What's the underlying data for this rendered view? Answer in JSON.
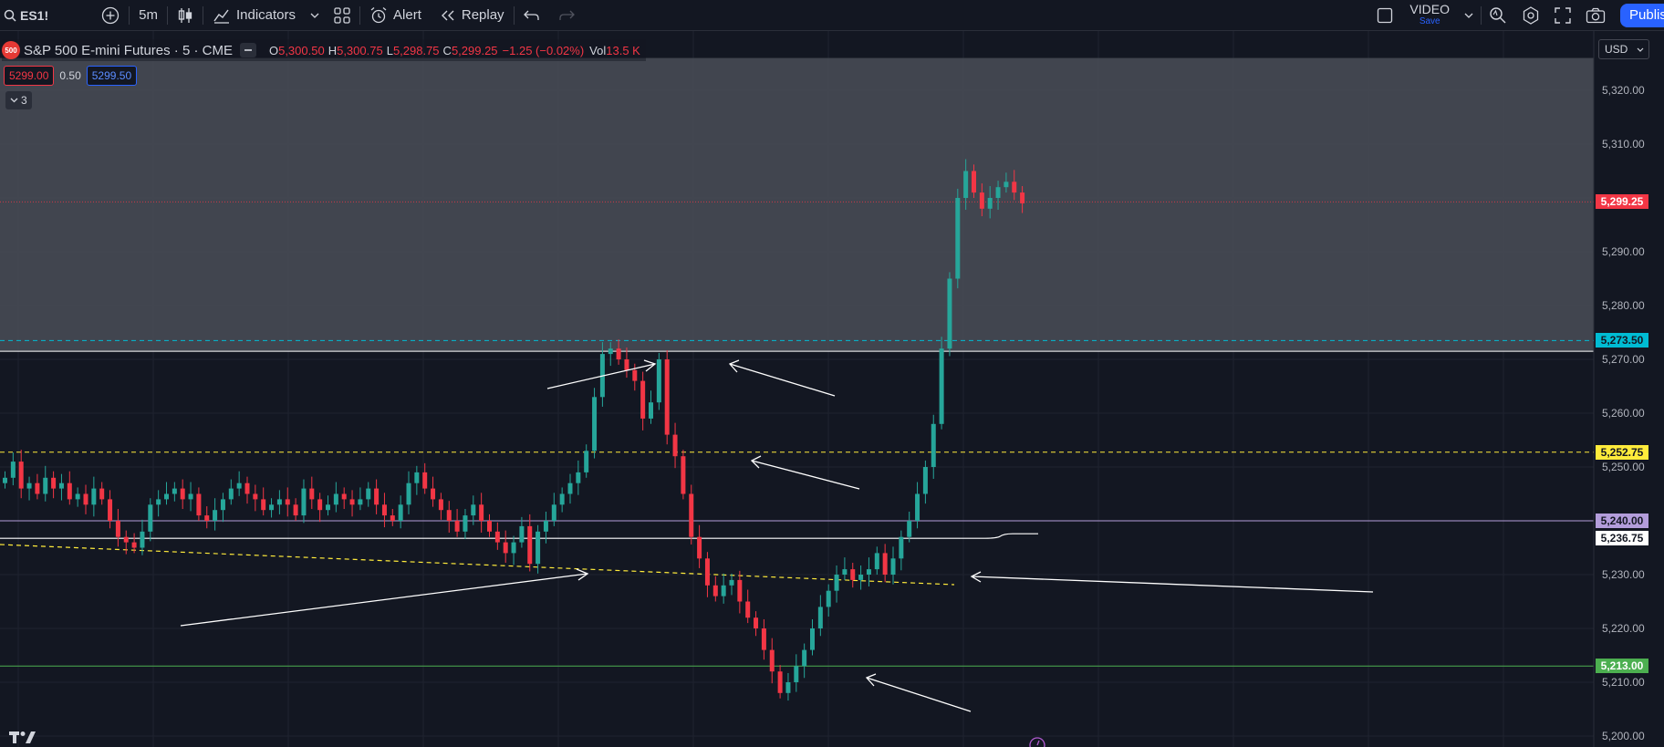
{
  "toolbar": {
    "symbol": "ES1!",
    "interval": "5m",
    "indicators_label": "Indicators",
    "alert_label": "Alert",
    "replay_label": "Replay",
    "video_label": "VIDEO",
    "video_sub": "Save",
    "publish_label": "Publish"
  },
  "legend": {
    "logo_text": "500",
    "title": "S&P 500 E-mini Futures · 5 · CME",
    "open_key": "O",
    "open": "5,300.50",
    "high_key": "H",
    "high": "5,300.75",
    "low_key": "L",
    "low": "5,298.75",
    "close_key": "C",
    "close": "5,299.25",
    "change": "−1.25 (−0.02%)",
    "vol_key": "Vol",
    "vol": "13.5 K",
    "bid": "5299.00",
    "spread": "0.50",
    "ask": "5299.50",
    "indicator_count": "3"
  },
  "price_axis": {
    "currency": "USD",
    "ticks": [
      "5,320.00",
      "5,310.00",
      "5,290.00",
      "5,280.00",
      "5,270.00",
      "5,260.00",
      "5,250.00",
      "5,230.00",
      "5,220.00",
      "5,210.00",
      "5,200.00"
    ]
  },
  "colors": {
    "up": "#26a69a",
    "down": "#f23645",
    "background": "#131722",
    "zone": "#4a4d57",
    "accent": "#2962ff"
  },
  "chart_data": {
    "type": "candlestick",
    "instrument": "S&P 500 E-mini Futures",
    "interval": "5",
    "exchange": "CME",
    "ylim": [
      5198,
      5326
    ],
    "last_price": 5299.25,
    "levels": [
      {
        "price": 5299.25,
        "label": "5,299.25",
        "color": "#f23645",
        "text_color": "#ffffff",
        "style": "dotted"
      },
      {
        "price": 5273.5,
        "label": "5,273.50",
        "color": "#00bcd4",
        "text_color": "#131722",
        "style": "dashed"
      },
      {
        "price": 5271.5,
        "label": "",
        "color": "#ffffff",
        "style": "solid"
      },
      {
        "price": 5252.75,
        "label": "5,252.75",
        "color": "#ffeb3b",
        "text_color": "#131722",
        "style": "dashed"
      },
      {
        "price": 5240.0,
        "label": "5,240.00",
        "color": "#b39ddb",
        "text_color": "#131722",
        "style": "solid"
      },
      {
        "price": 5236.75,
        "label": "5,236.75",
        "color": "#ffffff",
        "text_color": "#131722",
        "style": "curve"
      },
      {
        "price": 5213.0,
        "label": "5,213.00",
        "color": "#4caf50",
        "text_color": "#ffffff",
        "style": "solid"
      }
    ],
    "zone": {
      "from": 5271.5,
      "to": 5326
    },
    "path": [
      5248,
      5251,
      5246,
      5247,
      5245,
      5248,
      5246,
      5247,
      5244,
      5245,
      5243,
      5246,
      5244,
      5240,
      5237,
      5236,
      5235,
      5238,
      5243,
      5244,
      5245,
      5246,
      5244,
      5245,
      5241,
      5240,
      5242,
      5244,
      5246,
      5247,
      5245,
      5244,
      5242,
      5243,
      5244,
      5243,
      5241,
      5246,
      5244,
      5242,
      5243,
      5245,
      5244,
      5243,
      5244,
      5246,
      5243,
      5241,
      5240,
      5243,
      5247,
      5249,
      5246,
      5244,
      5242,
      5240,
      5238,
      5241,
      5243,
      5240,
      5238,
      5236,
      5234,
      5236,
      5239,
      5232,
      5238,
      5240,
      5243,
      5245,
      5247,
      5249,
      5253,
      5263,
      5271,
      5272,
      5270,
      5268,
      5266,
      5259,
      5262,
      5270,
      5256,
      5252,
      5245,
      5237,
      5233,
      5228,
      5226,
      5228,
      5229,
      5225,
      5222,
      5220,
      5216,
      5212,
      5208,
      5210,
      5213,
      5216,
      5220,
      5224,
      5227,
      5230,
      5231,
      5229,
      5230,
      5231,
      5234,
      5230,
      5233,
      5237,
      5240,
      5245,
      5250,
      5258,
      5272,
      5285,
      5300,
      5305,
      5301,
      5298,
      5300,
      5302,
      5303,
      5301,
      5299
    ]
  }
}
